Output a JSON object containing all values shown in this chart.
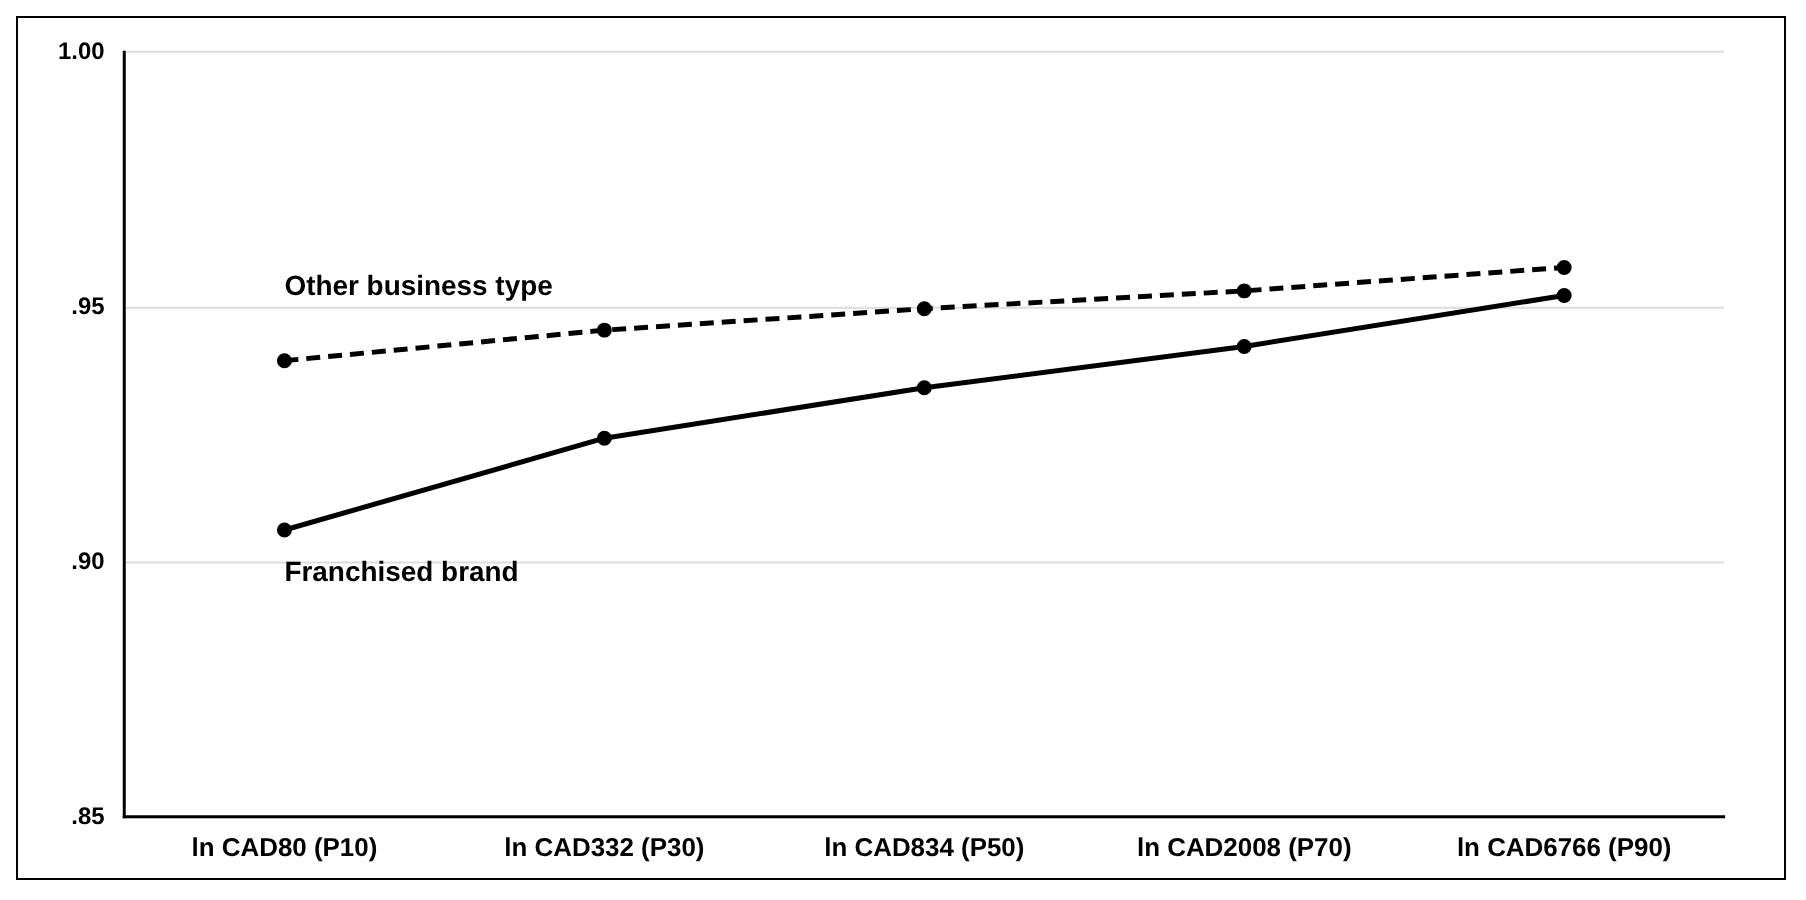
{
  "chart_data": {
    "type": "line",
    "categories": [
      "ln CAD80 (P10)",
      "ln CAD332 (P30)",
      "ln CAD834 (P50)",
      "ln CAD2008 (P70)",
      "ln CAD6766 (P90)"
    ],
    "series": [
      {
        "name": "Other business type",
        "color": "#000000",
        "line_style": "dashed",
        "values": [
          0.9395,
          0.9455,
          0.9497,
          0.9532,
          0.9578
        ]
      },
      {
        "name": "Franchised brand",
        "color": "#000000",
        "line_style": "solid",
        "values": [
          0.9063,
          0.9243,
          0.9342,
          0.9423,
          0.9523
        ]
      }
    ],
    "ylim": [
      0.85,
      1.0
    ],
    "yticks": [
      {
        "value": 0.85,
        "label": ".85"
      },
      {
        "value": 0.9,
        "label": ".90"
      },
      {
        "value": 0.95,
        "label": ".95"
      },
      {
        "value": 1.0,
        "label": "1.00"
      }
    ],
    "grid": "y",
    "legend": false,
    "marker": "circle"
  }
}
